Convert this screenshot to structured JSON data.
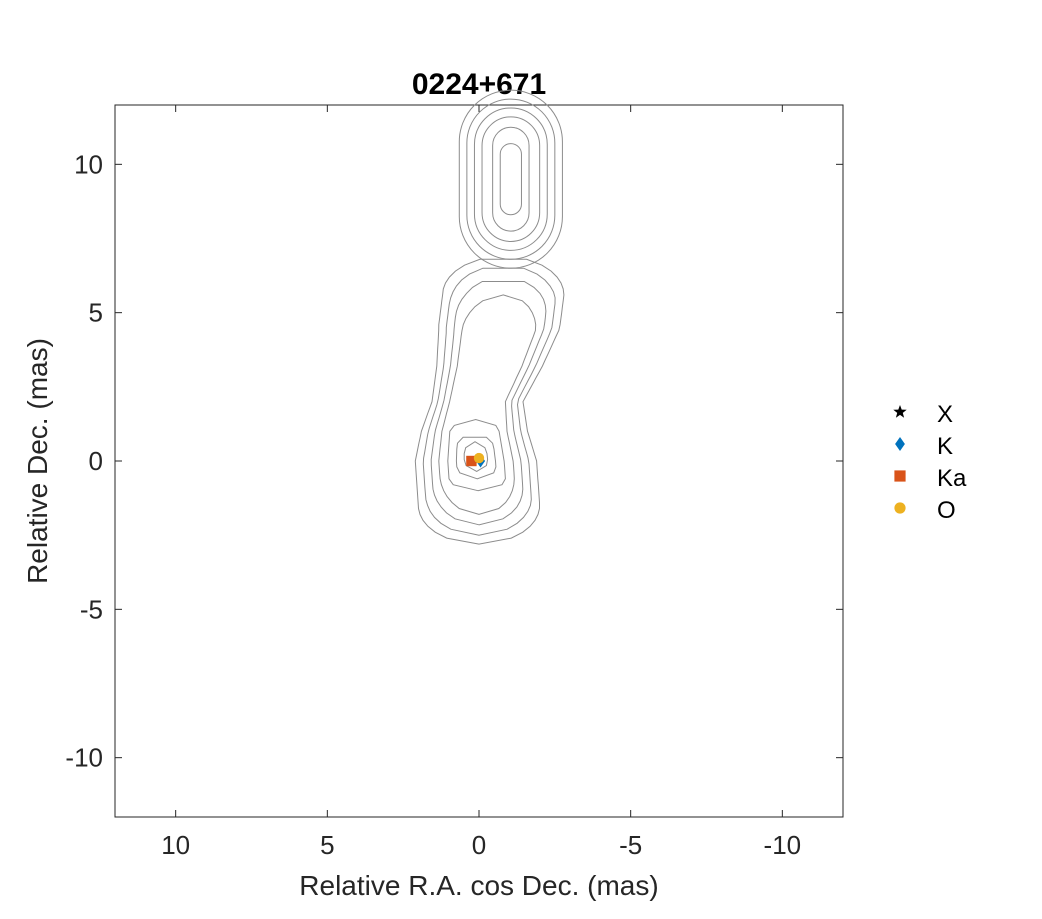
{
  "chart_data": {
    "type": "scatter",
    "title": "0224+671",
    "xlabel": "Relative R.A. cos Dec. (mas)",
    "ylabel": "Relative Dec. (mas)",
    "xlim": [
      12,
      -12
    ],
    "ylim": [
      -12,
      12
    ],
    "x_reversed": true,
    "xticks": [
      10,
      5,
      0,
      -5,
      -10
    ],
    "yticks": [
      10,
      5,
      0,
      -5,
      -10
    ],
    "xtick_labels": [
      "10",
      "5",
      "0",
      "-5",
      "-10"
    ],
    "ytick_labels": [
      "10",
      "5",
      "0",
      "-5",
      "-10"
    ],
    "grid": false,
    "legend_position": "outside-right",
    "series": [
      {
        "name": "X",
        "marker": "star",
        "color": "#000000",
        "x": 0.05,
        "y": 0.05
      },
      {
        "name": "K",
        "marker": "diamond",
        "color": "#0072BD",
        "x": -0.05,
        "y": 0.0
      },
      {
        "name": "Ka",
        "marker": "square",
        "color": "#D95319",
        "x": 0.25,
        "y": 0.0
      },
      {
        "name": "O",
        "marker": "circle",
        "color": "#EDB120",
        "x": 0.0,
        "y": 0.1
      }
    ],
    "contours": {
      "color": "#8c8c8c",
      "features": [
        {
          "component": "upper-jet",
          "center_x": -1.05,
          "center_y": 9.5,
          "half_widths": [
            1.7,
            1.45,
            1.2,
            0.95,
            0.6,
            0.35
          ],
          "half_lengths": [
            3.0,
            2.7,
            2.4,
            2.1,
            1.75,
            1.2
          ]
        },
        {
          "component": "core-jet",
          "core_x": 0.0,
          "core_y": 0.0,
          "levels": 7
        }
      ]
    }
  }
}
